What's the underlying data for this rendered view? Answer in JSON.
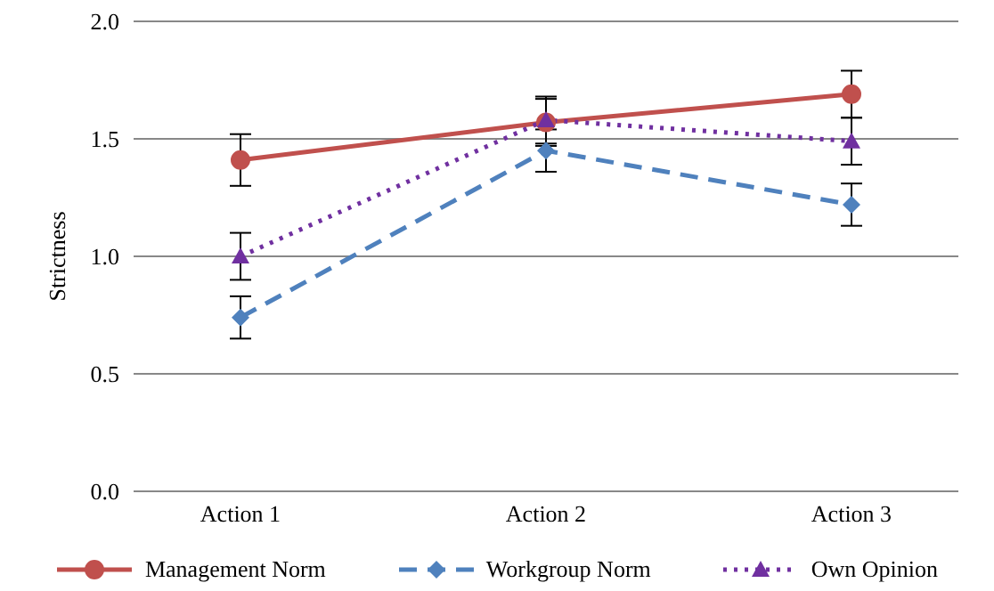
{
  "chart_data": {
    "type": "line",
    "ylabel": "Strictness",
    "categories": [
      "Action 1",
      "Action 2",
      "Action 3"
    ],
    "series": [
      {
        "name": "Management Norm",
        "color": "#c0504d",
        "values": [
          1.41,
          1.57,
          1.69
        ],
        "errors": [
          0.11,
          0.1,
          0.1
        ],
        "marker": "circle",
        "line_style": "solid"
      },
      {
        "name": "Workgroup Norm",
        "color": "#4f81bd",
        "values": [
          0.74,
          1.45,
          1.22
        ],
        "errors": [
          0.09,
          0.09,
          0.09
        ],
        "marker": "diamond",
        "line_style": "dashed"
      },
      {
        "name": "Own Opinion",
        "color": "#7030a0",
        "values": [
          1.0,
          1.58,
          1.49
        ],
        "errors": [
          0.1,
          0.1,
          0.1
        ],
        "marker": "triangle",
        "line_style": "dotted"
      }
    ],
    "ylim": [
      0,
      2
    ],
    "yticks": [
      {
        "value": 0,
        "label": "0.0"
      },
      {
        "value": 0.5,
        "label": "0.5"
      },
      {
        "value": 1,
        "label": "1.0"
      },
      {
        "value": 1.5,
        "label": "1.5"
      },
      {
        "value": 2,
        "label": "2.0"
      }
    ],
    "grid": "y",
    "legend": "bottom"
  }
}
